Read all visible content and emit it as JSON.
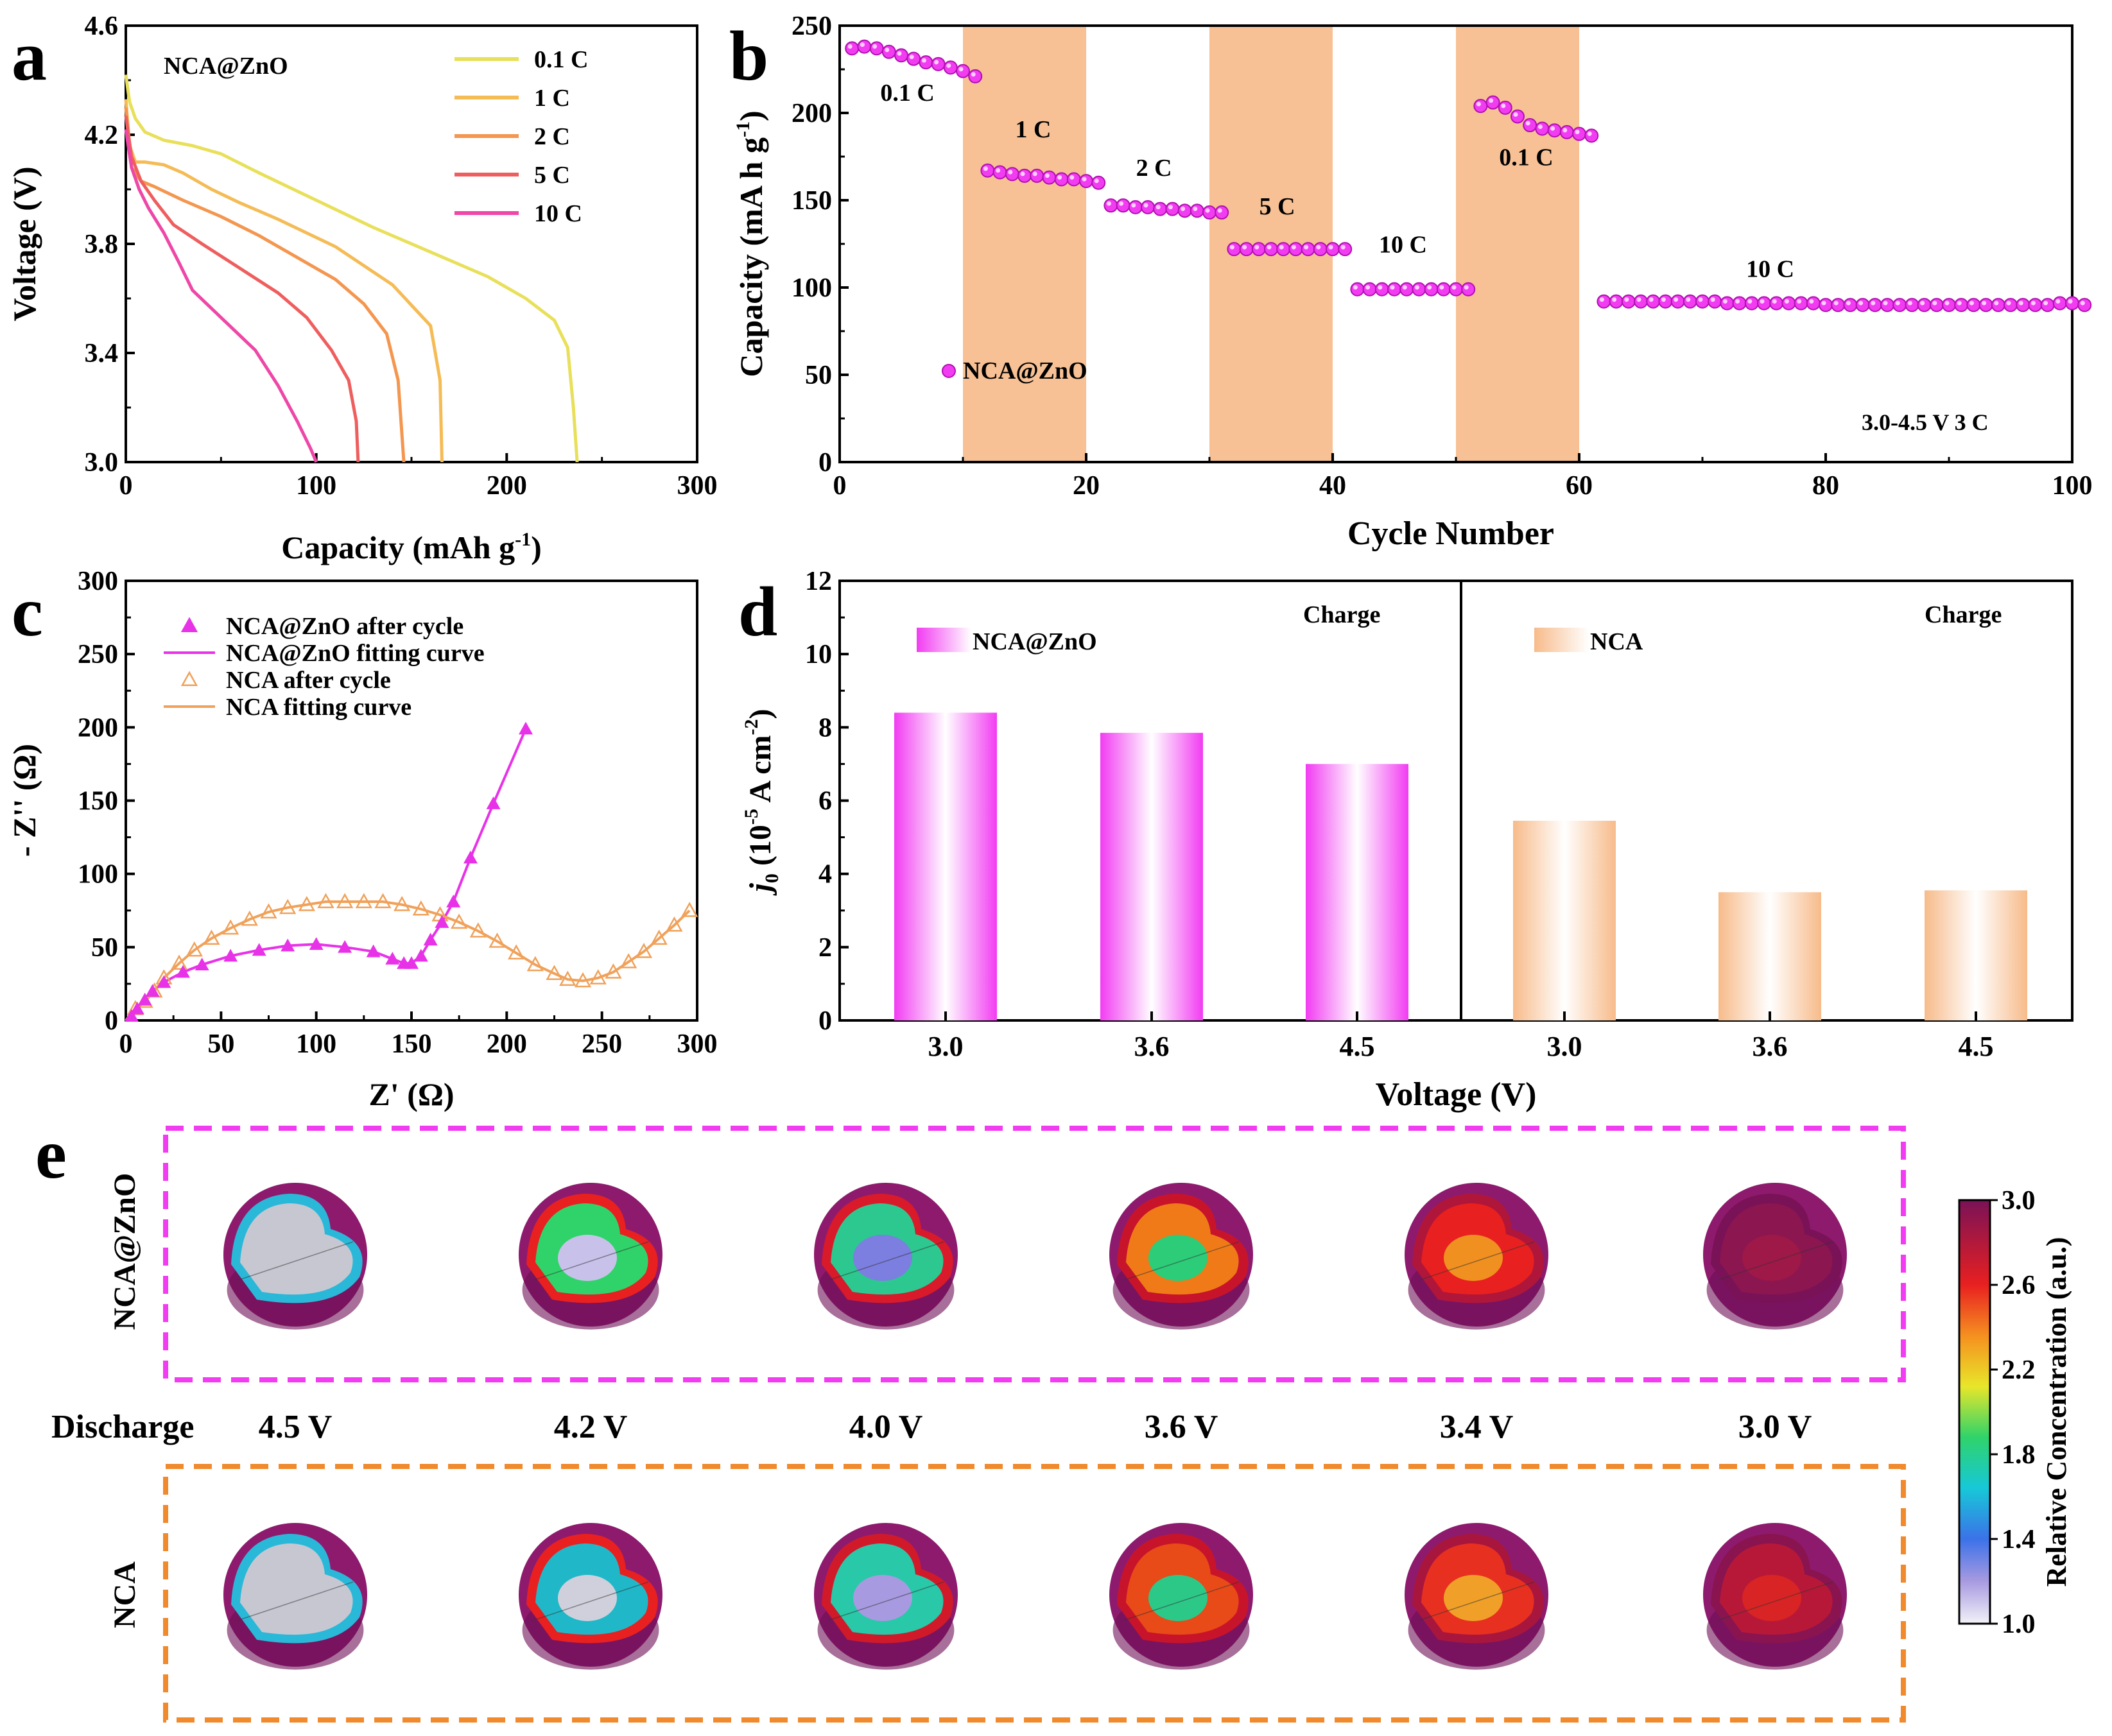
{
  "panel_labels": {
    "a": "a",
    "b": "b",
    "c": "c",
    "d": "d",
    "e": "e"
  },
  "colors": {
    "magenta": "#f23cf2",
    "orange_box": "#f08a2c",
    "peach": "#f7c195",
    "c01": "#e8e05a",
    "c1": "#f5bb55",
    "c2": "#f4964f",
    "c5": "#ef5e5e",
    "c10": "#ee47a7"
  },
  "chart_data": [
    {
      "id": "a",
      "type": "line",
      "title": "NCA@ZnO",
      "xlabel": "Capacity (mAh g",
      "xlabel_sup": "-1",
      "xlabel_end": ")",
      "ylabel": "Voltage (V)",
      "xlim": [
        0,
        300
      ],
      "ylim": [
        3.0,
        4.6
      ],
      "xticks": [
        0,
        100,
        200,
        300
      ],
      "xtick_labels": [
        "0",
        "100",
        "200",
        "300"
      ],
      "yticks": [
        3.0,
        3.4,
        3.8,
        4.2,
        4.6
      ],
      "ytick_labels": [
        "3.0",
        "3.4",
        "3.8",
        "4.2",
        "4.6"
      ],
      "series": [
        {
          "name": "0.1 C",
          "color": "#e8e05a",
          "x": [
            0,
            2,
            5,
            10,
            20,
            35,
            50,
            70,
            100,
            130,
            160,
            190,
            210,
            225,
            232,
            235,
            237
          ],
          "y": [
            4.42,
            4.32,
            4.26,
            4.21,
            4.18,
            4.16,
            4.13,
            4.06,
            3.96,
            3.86,
            3.77,
            3.68,
            3.6,
            3.52,
            3.42,
            3.2,
            3.0
          ]
        },
        {
          "name": "1 C",
          "color": "#f5bb55",
          "x": [
            0,
            2,
            5,
            10,
            20,
            30,
            45,
            60,
            80,
            110,
            140,
            160,
            165,
            166
          ],
          "y": [
            4.33,
            4.16,
            4.1,
            4.1,
            4.09,
            4.06,
            4.0,
            3.95,
            3.89,
            3.79,
            3.65,
            3.5,
            3.3,
            3.0
          ]
        },
        {
          "name": "2 C",
          "color": "#f4964f",
          "x": [
            0,
            3,
            8,
            15,
            30,
            50,
            70,
            90,
            110,
            125,
            137,
            143,
            146
          ],
          "y": [
            4.3,
            4.08,
            4.03,
            4.01,
            3.96,
            3.9,
            3.83,
            3.75,
            3.67,
            3.58,
            3.47,
            3.3,
            3.0
          ]
        },
        {
          "name": "5 C",
          "color": "#ef5e5e",
          "x": [
            0,
            3,
            8,
            15,
            25,
            40,
            60,
            80,
            95,
            108,
            117,
            121,
            122
          ],
          "y": [
            4.27,
            4.12,
            4.03,
            3.96,
            3.87,
            3.8,
            3.71,
            3.62,
            3.53,
            3.41,
            3.3,
            3.15,
            3.0
          ]
        },
        {
          "name": "10 C",
          "color": "#ee47a7",
          "x": [
            0,
            3,
            7,
            12,
            20,
            28,
            35,
            50,
            68,
            80,
            90,
            97,
            100
          ],
          "y": [
            4.22,
            4.08,
            4.0,
            3.93,
            3.84,
            3.73,
            3.63,
            3.53,
            3.41,
            3.28,
            3.15,
            3.05,
            3.0
          ]
        }
      ]
    },
    {
      "id": "b",
      "type": "scatter",
      "xlabel": "Cycle Number",
      "ylabel": "Capacity (mA h g",
      "ylabel_sup": "-1",
      "ylabel_end": ")",
      "xlim": [
        0,
        100
      ],
      "ylim": [
        0,
        250
      ],
      "xticks": [
        0,
        20,
        40,
        60,
        80,
        100
      ],
      "xtick_labels": [
        "0",
        "20",
        "40",
        "60",
        "80",
        "100"
      ],
      "yticks": [
        0,
        50,
        100,
        150,
        200,
        250
      ],
      "ytick_labels": [
        "0",
        "50",
        "100",
        "150",
        "200",
        "250"
      ],
      "legend": "NCA@ZnO",
      "condition": "3.0-4.5 V   3 C",
      "shaded_ranges": [
        [
          10,
          20
        ],
        [
          30,
          40
        ],
        [
          50,
          60
        ]
      ],
      "rate_labels": [
        {
          "text": "0.1 C",
          "x": 5.5,
          "y": 207
        },
        {
          "text": "1 C",
          "x": 15.7,
          "y": 186
        },
        {
          "text": "2 C",
          "x": 25.5,
          "y": 164
        },
        {
          "text": "5 C",
          "x": 35.5,
          "y": 142
        },
        {
          "text": "10 C",
          "x": 45.7,
          "y": 120
        },
        {
          "text": "0.1 C",
          "x": 55.7,
          "y": 170
        },
        {
          "text": "10 C",
          "x": 75.5,
          "y": 106
        }
      ],
      "values": [
        237,
        238,
        237,
        235,
        233,
        231,
        229,
        228,
        226,
        224,
        221,
        167,
        166,
        165,
        164,
        164,
        163,
        162,
        162,
        161,
        160,
        147,
        147,
        146,
        146,
        145,
        145,
        144,
        144,
        143,
        143,
        122,
        122,
        122,
        122,
        122,
        122,
        122,
        122,
        122,
        122,
        99,
        99,
        99,
        99,
        99,
        99,
        99,
        99,
        99,
        99,
        204,
        206,
        203,
        198,
        193,
        191,
        190,
        189,
        188,
        187,
        92,
        92,
        92,
        92,
        92,
        92,
        92,
        92,
        92,
        92,
        91,
        91,
        91,
        91,
        91,
        91,
        91,
        91,
        90,
        90,
        90,
        90,
        90,
        90,
        90,
        90,
        90,
        90,
        90,
        90,
        90,
        90,
        90,
        90,
        90,
        90,
        90,
        91,
        91,
        90
      ]
    },
    {
      "id": "c",
      "type": "scatter",
      "xlabel": "Z' (Ω)",
      "ylabel": "- Z'' (Ω)",
      "xlim": [
        0,
        300
      ],
      "ylim": [
        0,
        300
      ],
      "xticks": [
        0,
        50,
        100,
        150,
        200,
        250,
        300
      ],
      "xtick_labels": [
        "0",
        "50",
        "100",
        "150",
        "200",
        "250",
        "300"
      ],
      "yticks": [
        0,
        50,
        100,
        150,
        200,
        250,
        300
      ],
      "ytick_labels": [
        "0",
        "50",
        "100",
        "150",
        "200",
        "250",
        "300"
      ],
      "series": [
        {
          "name": "NCA@ZnO after cycle",
          "color": "#e832e8",
          "marker": "filled-triangle",
          "x": [
            3,
            6,
            10,
            14,
            20,
            30,
            40,
            55,
            70,
            85,
            100,
            115,
            130,
            140,
            146,
            150,
            155,
            160,
            166,
            172,
            181,
            193,
            210
          ],
          "y": [
            3,
            8,
            14,
            20,
            26,
            33,
            38,
            44,
            48,
            51,
            52,
            50,
            47,
            42,
            39,
            39,
            44,
            55,
            67,
            81,
            111,
            148,
            199
          ]
        },
        {
          "name": "NCA@ZnO fitting curve",
          "color": "#e832e8",
          "marker": "line"
        },
        {
          "name": "NCA after cycle",
          "color": "#f0a15a",
          "marker": "open-triangle",
          "x": [
            5,
            10,
            15,
            20,
            28,
            36,
            45,
            55,
            65,
            75,
            85,
            95,
            105,
            115,
            125,
            135,
            145,
            155,
            165,
            175,
            185,
            195,
            205,
            215,
            225,
            232,
            240,
            248,
            256,
            264,
            272,
            280,
            288,
            296
          ],
          "y": [
            8,
            13,
            20,
            29,
            39,
            48,
            56,
            63,
            69,
            74,
            77,
            79,
            81,
            81,
            81,
            81,
            79,
            76,
            72,
            67,
            61,
            54,
            46,
            38,
            32,
            28,
            27,
            29,
            33,
            40,
            47,
            56,
            65,
            75
          ]
        },
        {
          "name": "NCA fitting curve",
          "color": "#f0a15a",
          "marker": "line"
        }
      ]
    },
    {
      "id": "d",
      "type": "bar",
      "xlabel": "Voltage (V)",
      "ylabel_j": "j",
      "ylabel_sub": "0",
      "ylabel_rest": " (10",
      "ylabel_sup": "-5",
      "ylabel_end": " A cm",
      "ylabel_sup2": "-2",
      "ylabel_close": ")",
      "ylim": [
        0,
        12
      ],
      "yticks": [
        0,
        2,
        4,
        6,
        8,
        10,
        12
      ],
      "ytick_labels": [
        "0",
        "2",
        "4",
        "6",
        "8",
        "10",
        "12"
      ],
      "groups": [
        {
          "name": "NCA@ZnO",
          "label": "Charge",
          "color": "#f23cf2",
          "categories": [
            "3.0",
            "3.6",
            "4.5"
          ],
          "values": [
            8.4,
            7.85,
            7.0
          ]
        },
        {
          "name": "NCA",
          "label": "Charge",
          "color": "#f7c195",
          "categories": [
            "3.0",
            "3.6",
            "4.5"
          ],
          "values": [
            5.45,
            3.5,
            3.55
          ]
        }
      ]
    },
    {
      "id": "e",
      "type": "heatmap",
      "row_labels": [
        "NCA@ZnO",
        "NCA"
      ],
      "mode": "Discharge",
      "voltages": [
        "4.5 V",
        "4.2 V",
        "4.0 V",
        "3.6 V",
        "3.4 V",
        "3.0 V"
      ],
      "colorbar": {
        "label": "Relative Concentration (a.u.)",
        "min": 1.0,
        "max": 3.0,
        "ticks": [
          "1.0",
          "1.4",
          "1.8",
          "2.2",
          "2.6",
          "3.0"
        ]
      }
    }
  ]
}
